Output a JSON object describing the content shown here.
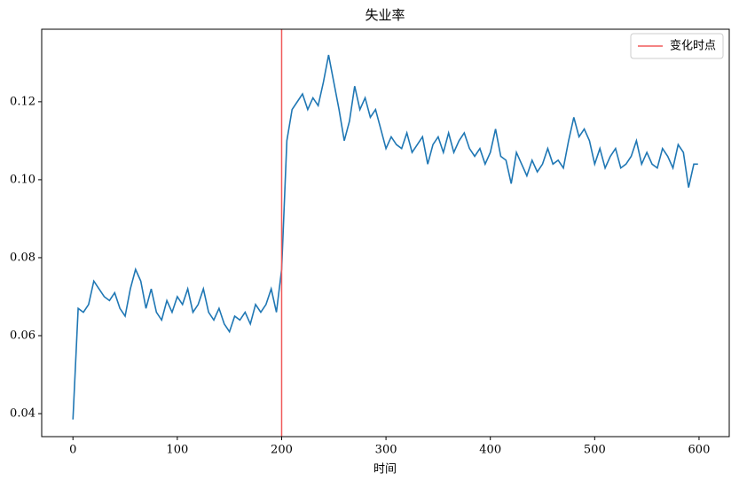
{
  "chart_data": {
    "type": "line",
    "title": "失业率",
    "x_label": "时间",
    "x": [
      0,
      5,
      10,
      15,
      20,
      25,
      30,
      35,
      40,
      45,
      50,
      55,
      60,
      65,
      70,
      75,
      80,
      85,
      90,
      95,
      100,
      105,
      110,
      115,
      120,
      125,
      130,
      135,
      140,
      145,
      150,
      155,
      160,
      165,
      170,
      175,
      180,
      185,
      190,
      195,
      200,
      205,
      210,
      215,
      220,
      225,
      230,
      235,
      240,
      245,
      250,
      255,
      260,
      265,
      270,
      275,
      280,
      285,
      290,
      295,
      300,
      305,
      310,
      315,
      320,
      325,
      330,
      335,
      340,
      345,
      350,
      355,
      360,
      365,
      370,
      375,
      380,
      385,
      390,
      395,
      400,
      405,
      410,
      415,
      420,
      425,
      430,
      435,
      440,
      445,
      450,
      455,
      460,
      465,
      470,
      475,
      480,
      485,
      490,
      495,
      500,
      505,
      510,
      515,
      520,
      525,
      530,
      535,
      540,
      545,
      550,
      555,
      560,
      565,
      570,
      575,
      580,
      585,
      590,
      595,
      599
    ],
    "series": [
      {
        "name": "失业率",
        "color": "#1f77b4",
        "values": [
          0.0385,
          0.067,
          0.066,
          0.068,
          0.074,
          0.072,
          0.07,
          0.069,
          0.071,
          0.067,
          0.065,
          0.072,
          0.077,
          0.074,
          0.067,
          0.072,
          0.066,
          0.064,
          0.069,
          0.066,
          0.07,
          0.068,
          0.072,
          0.066,
          0.068,
          0.072,
          0.066,
          0.064,
          0.067,
          0.063,
          0.061,
          0.065,
          0.064,
          0.066,
          0.063,
          0.068,
          0.066,
          0.068,
          0.072,
          0.066,
          0.077,
          0.11,
          0.118,
          0.12,
          0.122,
          0.118,
          0.121,
          0.119,
          0.125,
          0.132,
          0.125,
          0.118,
          0.11,
          0.115,
          0.124,
          0.118,
          0.121,
          0.116,
          0.118,
          0.113,
          0.108,
          0.111,
          0.109,
          0.108,
          0.112,
          0.107,
          0.109,
          0.111,
          0.104,
          0.109,
          0.111,
          0.107,
          0.112,
          0.107,
          0.11,
          0.112,
          0.108,
          0.106,
          0.108,
          0.104,
          0.107,
          0.113,
          0.106,
          0.105,
          0.099,
          0.107,
          0.104,
          0.101,
          0.105,
          0.102,
          0.104,
          0.108,
          0.104,
          0.105,
          0.103,
          0.11,
          0.116,
          0.111,
          0.113,
          0.11,
          0.104,
          0.108,
          0.103,
          0.106,
          0.108,
          0.103,
          0.104,
          0.106,
          0.11,
          0.104,
          0.107,
          0.104,
          0.103,
          0.108,
          0.106,
          0.103,
          0.109,
          0.107,
          0.098,
          0.104,
          0.104
        ]
      }
    ],
    "vlines": [
      {
        "x": 200,
        "name": "变化时点",
        "color": "#f05a5a"
      }
    ],
    "xlim": [
      -29.95,
      628.95
    ],
    "ylim": [
      0.0341,
      0.1386
    ],
    "xticks": [
      0,
      100,
      200,
      300,
      400,
      500,
      600
    ],
    "yticks": [
      0.04,
      0.06,
      0.08,
      {
        "value": 0.1,
        "label": "0.10"
      },
      0.12
    ],
    "legend": "upper right"
  }
}
